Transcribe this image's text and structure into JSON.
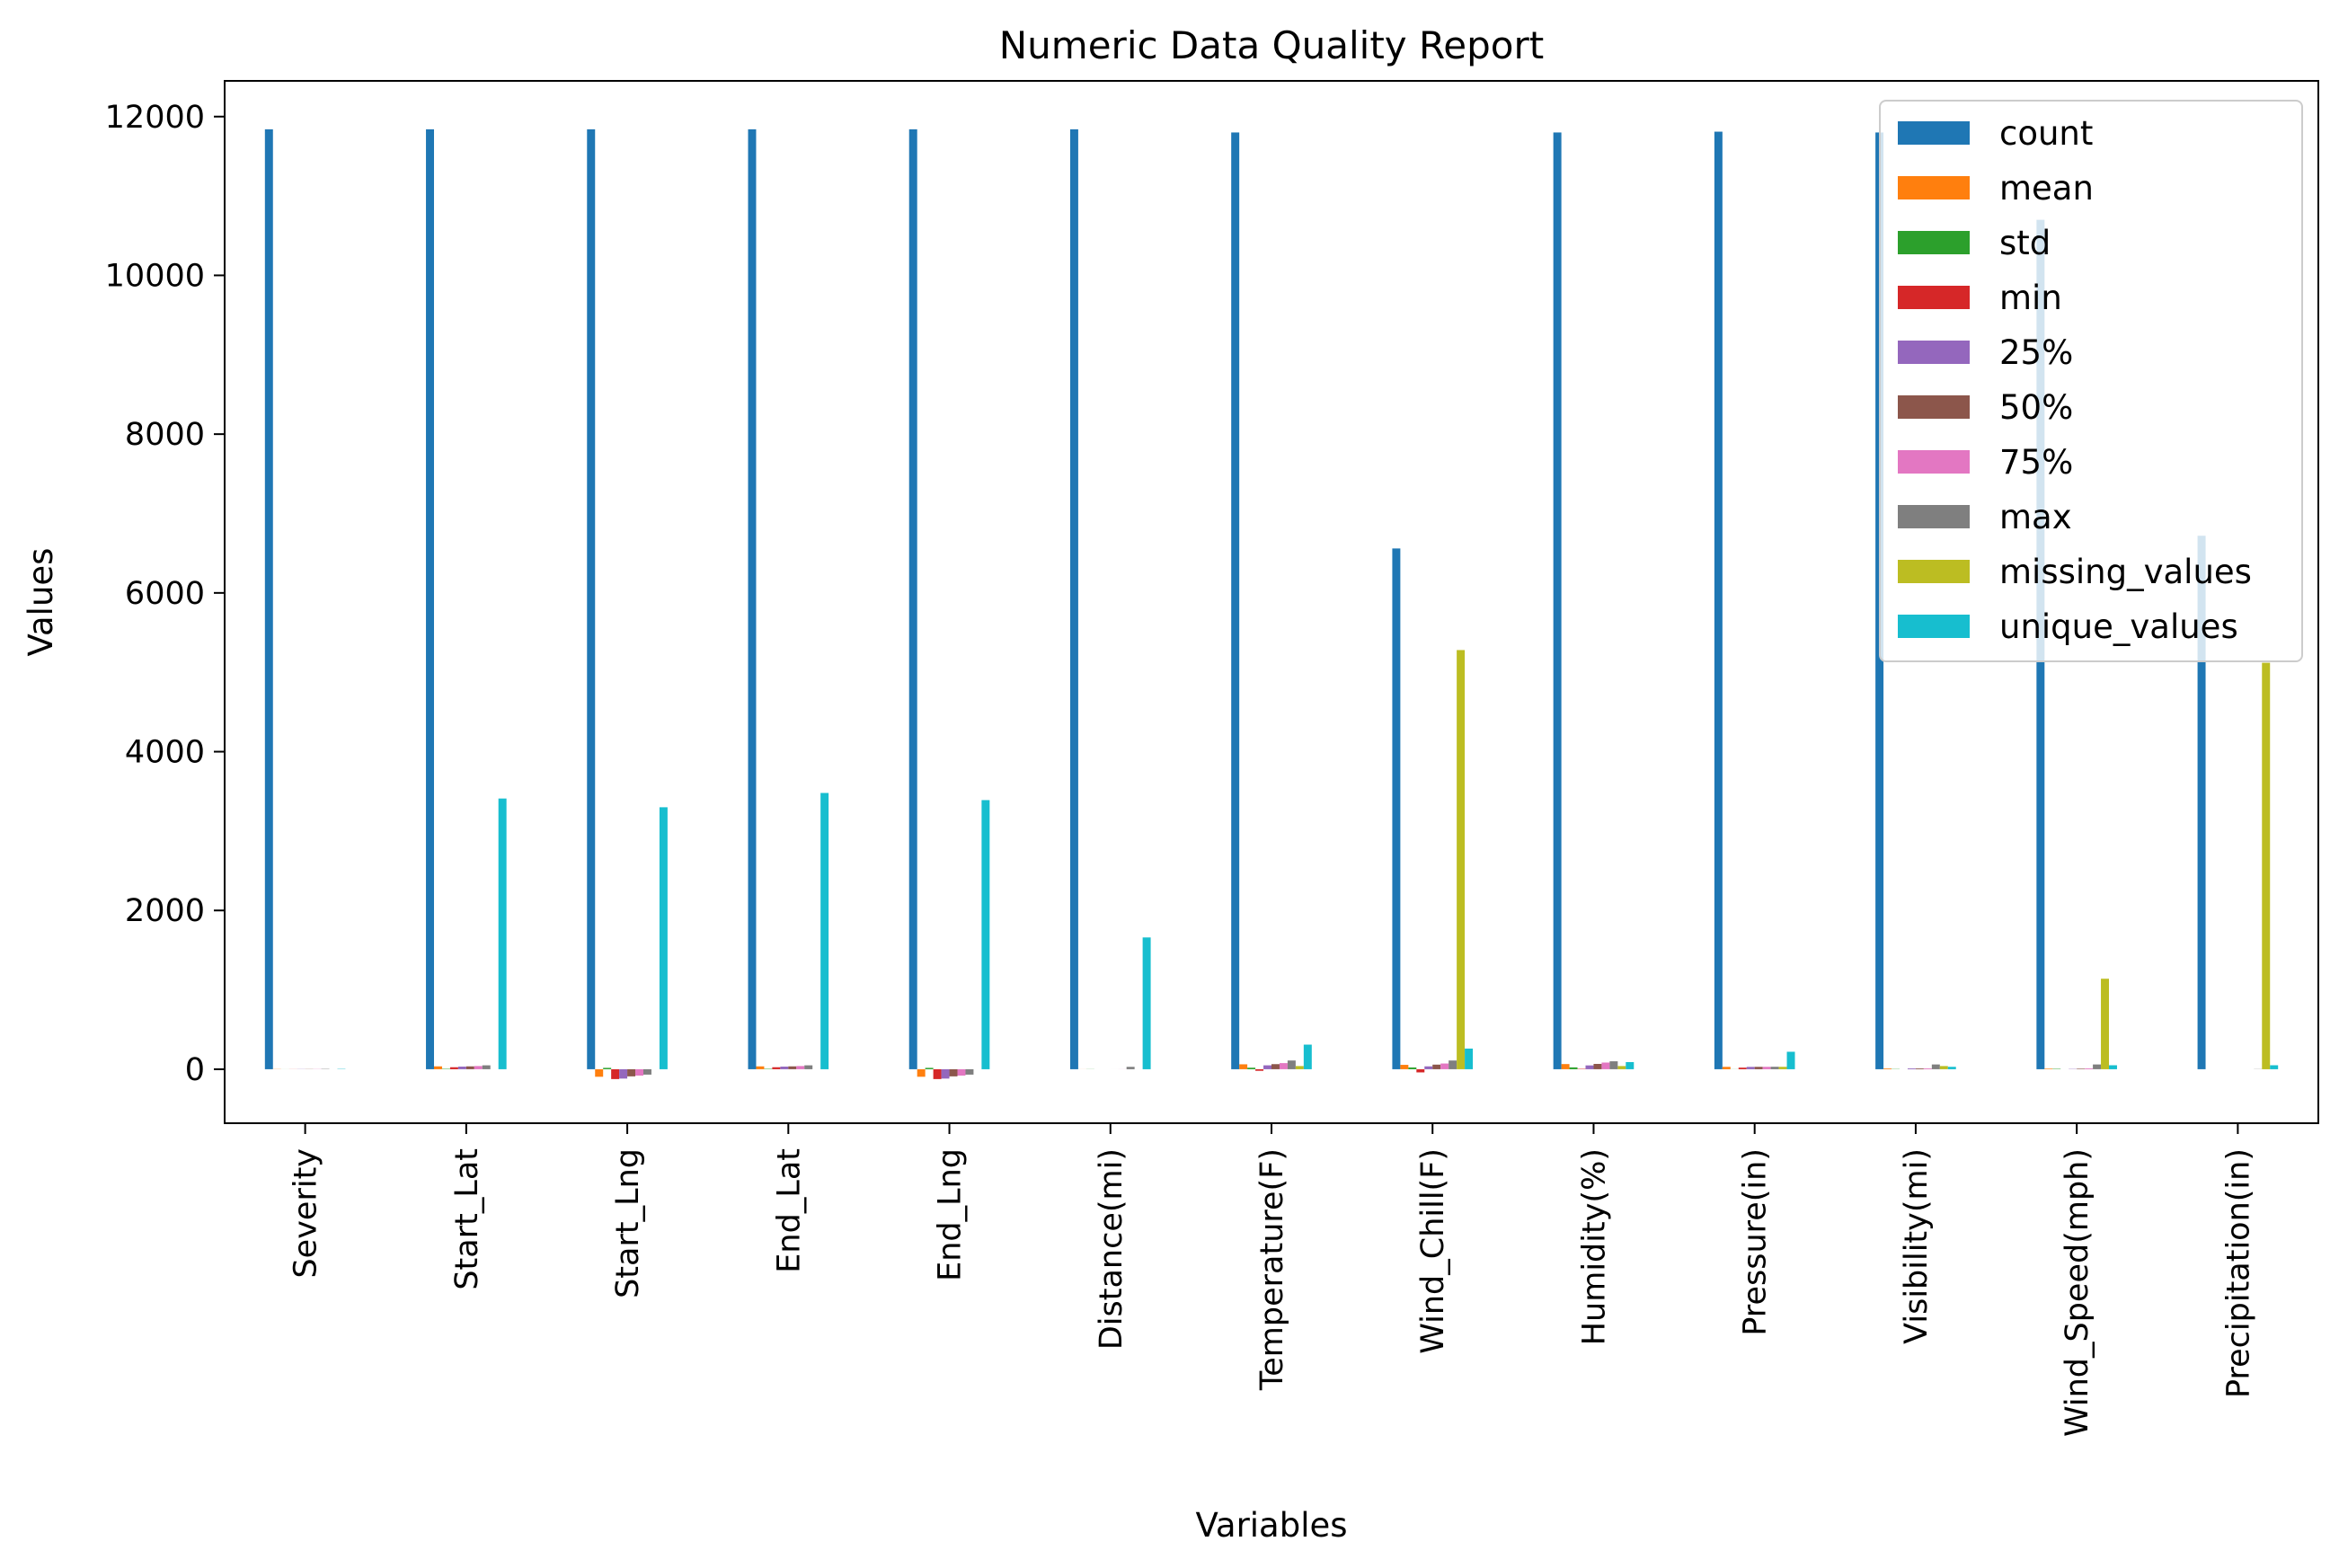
{
  "chart_data": {
    "type": "bar",
    "title": "Numeric Data Quality Report",
    "xlabel": "Variables",
    "ylabel": "Values",
    "ylim": [
      -680,
      12450
    ],
    "yticks": [
      0,
      2000,
      4000,
      6000,
      8000,
      10000,
      12000
    ],
    "grid": false,
    "legend_position": "top-right",
    "categories": [
      "Severity",
      "Start_Lat",
      "Start_Lng",
      "End_Lat",
      "End_Lng",
      "Distance(mi)",
      "Temperature(F)",
      "Wind_Chill(F)",
      "Humidity(%)",
      "Pressure(in)",
      "Visibility(mi)",
      "Wind_Speed(mph)",
      "Precipitation(in)"
    ],
    "series": [
      {
        "name": "count",
        "color": "#1f77b4",
        "values": [
          11840,
          11840,
          11840,
          11840,
          11840,
          11840,
          11800,
          6560,
          11800,
          11810,
          11800,
          10700,
          6720
        ]
      },
      {
        "name": "mean",
        "color": "#ff7f0e",
        "values": [
          2.1,
          36,
          -95,
          36,
          -95,
          0.6,
          62,
          55,
          65,
          29.6,
          9.2,
          7.5,
          0.01
        ]
      },
      {
        "name": "std",
        "color": "#2ca02c",
        "values": [
          0.4,
          5,
          17,
          5,
          17,
          1.5,
          19,
          22,
          23,
          1,
          2.8,
          5,
          0.05
        ]
      },
      {
        "name": "min",
        "color": "#d62728",
        "values": [
          1,
          25,
          -124,
          25,
          -124,
          0,
          -20,
          -40,
          5,
          20,
          0,
          0,
          0
        ]
      },
      {
        "name": "25%",
        "color": "#9467bd",
        "values": [
          2,
          33,
          -118,
          33,
          -118,
          0,
          49,
          36,
          48,
          29.5,
          10,
          3.5,
          0
        ]
      },
      {
        "name": "50%",
        "color": "#8c564b",
        "values": [
          2,
          36,
          -90,
          36,
          -90,
          0.1,
          64,
          58,
          67,
          29.9,
          10,
          7,
          0
        ]
      },
      {
        "name": "75%",
        "color": "#e377c2",
        "values": [
          2,
          40,
          -80,
          40,
          -80,
          0.7,
          77,
          72,
          84,
          30.1,
          10,
          10,
          0
        ]
      },
      {
        "name": "max",
        "color": "#7f7f7f",
        "values": [
          4,
          49,
          -68,
          49,
          -68,
          30,
          110,
          110,
          100,
          31,
          60,
          60,
          2
        ]
      },
      {
        "name": "missing_values",
        "color": "#bcbd22",
        "values": [
          0,
          0,
          0,
          0,
          0,
          0,
          40,
          5280,
          40,
          30,
          40,
          1140,
          5120
        ]
      },
      {
        "name": "unique_values",
        "color": "#17becf",
        "values": [
          4,
          3410,
          3300,
          3480,
          3390,
          1660,
          310,
          260,
          90,
          220,
          30,
          50,
          50
        ]
      }
    ]
  }
}
